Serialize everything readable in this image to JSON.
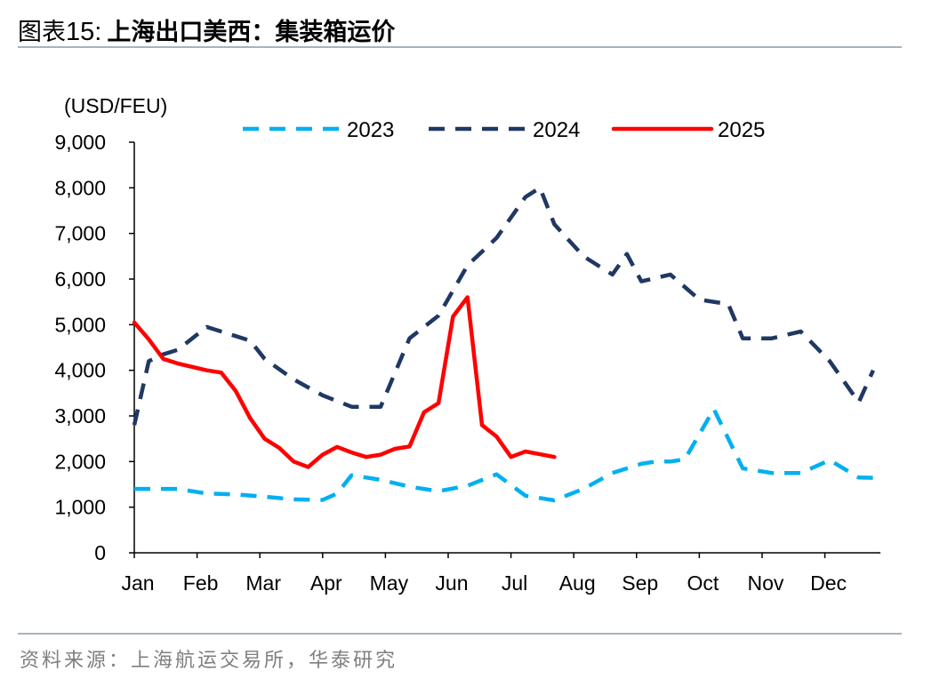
{
  "figure": {
    "label": "图表",
    "number": "15:",
    "title": "上海出口美西：集装箱运价"
  },
  "source": "资料来源：上海航运交易所，华泰研究",
  "chart_data": {
    "type": "line",
    "unit_label": "(USD/FEU)",
    "ylim": [
      0,
      9000
    ],
    "y_ticks": [
      0,
      1000,
      2000,
      3000,
      4000,
      5000,
      6000,
      7000,
      8000,
      9000
    ],
    "y_tick_labels": [
      "0",
      "1,000",
      "2,000",
      "3,000",
      "4,000",
      "5,000",
      "6,000",
      "7,000",
      "8,000",
      "9,000"
    ],
    "months": [
      "Jan",
      "Feb",
      "Mar",
      "Apr",
      "May",
      "Jun",
      "Jul",
      "Aug",
      "Sep",
      "Oct",
      "Nov",
      "Dec"
    ],
    "x_unit": "week of year",
    "xlim": [
      1,
      52.5
    ],
    "legend_position": "top",
    "series": [
      {
        "name": "2023",
        "color": "#00b0f0",
        "style": "dashed-light",
        "x": [
          1,
          2,
          4,
          6,
          8,
          10,
          12,
          14,
          15,
          16,
          18,
          20,
          22,
          24,
          26,
          28,
          30,
          32,
          34,
          36,
          37,
          38,
          39,
          41,
          43,
          45,
          47,
          49,
          51,
          52.5
        ],
        "y": [
          1400,
          1400,
          1400,
          1300,
          1280,
          1230,
          1170,
          1160,
          1300,
          1700,
          1600,
          1450,
          1350,
          1470,
          1720,
          1250,
          1150,
          1400,
          1750,
          1950,
          2000,
          2000,
          2050,
          3150,
          1850,
          1750,
          1750,
          2030,
          1650,
          1640
        ]
      },
      {
        "name": "2024",
        "color": "#1f3864",
        "style": "dashed-dark",
        "x": [
          1,
          2,
          3,
          4,
          6,
          7,
          9,
          10,
          12,
          14,
          16,
          18,
          20,
          22,
          24,
          26,
          28,
          29,
          30,
          32,
          34,
          35,
          36,
          38,
          40,
          42,
          43,
          45,
          47,
          49,
          51,
          52
        ],
        "y": [
          2800,
          4200,
          4350,
          4450,
          4950,
          4850,
          4650,
          4250,
          3800,
          3450,
          3200,
          3200,
          4700,
          5200,
          6300,
          6900,
          7800,
          8000,
          7200,
          6500,
          6100,
          6550,
          5950,
          6100,
          5550,
          5450,
          4700,
          4700,
          4850,
          4200,
          3300,
          4000
        ]
      },
      {
        "name": "2025",
        "color": "#ff0000",
        "style": "solid",
        "x": [
          1,
          2,
          3,
          4,
          6,
          7,
          8,
          9,
          10,
          11,
          12,
          13,
          14,
          15,
          16,
          17,
          18,
          19,
          20,
          21,
          22,
          23,
          24,
          25,
          26,
          27,
          28,
          29,
          30
        ],
        "y": [
          5050,
          4680,
          4250,
          4150,
          4000,
          3950,
          3550,
          2950,
          2500,
          2300,
          2000,
          1880,
          2150,
          2320,
          2200,
          2100,
          2150,
          2280,
          2330,
          3080,
          3280,
          5180,
          5600,
          2800,
          2550,
          2100,
          2220,
          2160,
          2100
        ]
      }
    ]
  }
}
